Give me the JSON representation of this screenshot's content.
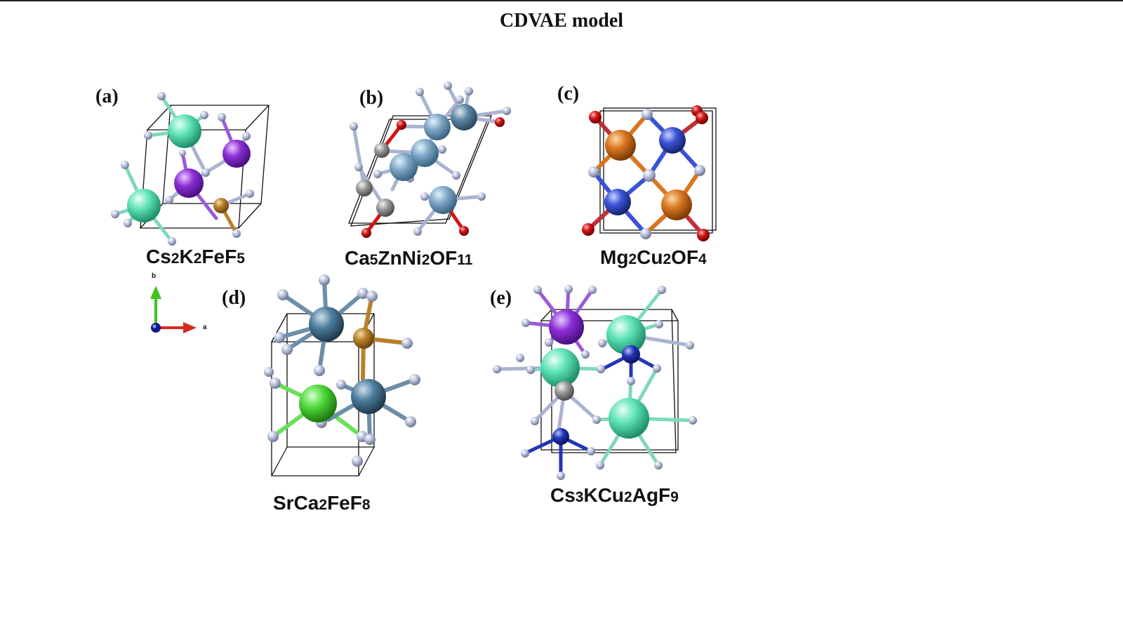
{
  "title": "CDVAE model",
  "panels": [
    {
      "label": "(a)",
      "formula": [
        [
          "Cs",
          ""
        ],
        [
          "2",
          "n"
        ],
        [
          "K",
          ""
        ],
        [
          "2",
          "n"
        ],
        [
          "FeF",
          ""
        ],
        [
          "5",
          "n"
        ]
      ]
    },
    {
      "label": "(b)",
      "formula": [
        [
          "Ca",
          ""
        ],
        [
          "5",
          "n"
        ],
        [
          "ZnNi",
          ""
        ],
        [
          "2",
          "n"
        ],
        [
          "OF",
          ""
        ],
        [
          "11",
          "n"
        ]
      ]
    },
    {
      "label": "(c)",
      "formula": [
        [
          "Mg",
          ""
        ],
        [
          "2",
          "n"
        ],
        [
          "Cu",
          ""
        ],
        [
          "2",
          "n"
        ],
        [
          "OF",
          ""
        ],
        [
          "4",
          "n"
        ]
      ]
    },
    {
      "label": "(d)",
      "formula": [
        [
          "SrCa",
          ""
        ],
        [
          "2",
          "n"
        ],
        [
          "FeF",
          ""
        ],
        [
          "8",
          "n"
        ]
      ]
    },
    {
      "label": "(e)",
      "formula": [
        [
          "Cs",
          ""
        ],
        [
          "3",
          "n"
        ],
        [
          "KCu",
          ""
        ],
        [
          "2",
          "n"
        ],
        [
          "AgF",
          ""
        ],
        [
          "9",
          "n"
        ]
      ]
    }
  ],
  "axes": {
    "b_label": "b",
    "a_label": "a"
  },
  "colors": {
    "fluorine": "#aab3d0",
    "cesium": "#5fe3b8",
    "potassium": "#8b2fd6",
    "iron": "#b8802a",
    "calcium": "#7fa8c7",
    "zinc": "#9a9a9a",
    "oxygen": "#d11515",
    "magnesium": "#d9761e",
    "copper": "#3b52d6",
    "strontium": "#4e7e9e",
    "calcium_green": "#4fd83a",
    "silver": "#a0a0a0",
    "cell_edge": "#111111"
  }
}
